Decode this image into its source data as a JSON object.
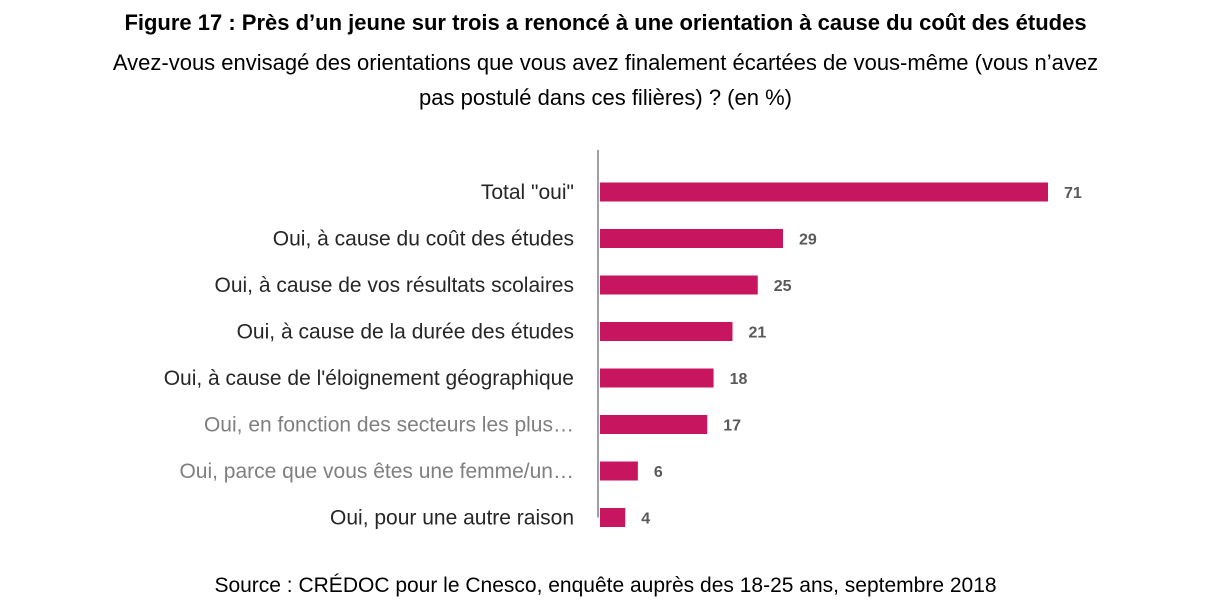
{
  "figure": {
    "title": "Figure 17 : Près d’un jeune sur trois a renoncé à une orientation à cause du coût des études",
    "subtitle_line1": "Avez-vous envisagé des orientations que vous avez finalement écartées de vous-même (vous n’avez",
    "subtitle_line2": "pas postulé dans ces filières) ? (en %)",
    "source": "Source : CRÉDOC pour le Cnesco, enquête auprès des 18-25 ans, septembre 2018"
  },
  "chart_data": {
    "type": "bar",
    "orientation": "horizontal",
    "categories": [
      "Total \"oui\"",
      "Oui, à cause du coût des études",
      "Oui, à cause de vos résultats scolaires",
      "Oui, à cause de la durée des études",
      "Oui, à cause de l'éloignement géographique",
      "Oui, en fonction des secteurs les plus…",
      "Oui, parce que vous êtes une femme/un…",
      "Oui, pour une autre raison"
    ],
    "label_colors": [
      "#262626",
      "#262626",
      "#262626",
      "#262626",
      "#262626",
      "#7f7f7f",
      "#7f7f7f",
      "#262626"
    ],
    "values": [
      71,
      29,
      25,
      21,
      18,
      17,
      6,
      4
    ],
    "data_labels": [
      "71",
      "29",
      "25",
      "21",
      "18",
      "17",
      "6",
      "4"
    ],
    "xlim": [
      0,
      71
    ],
    "bar_color": "#c8155f",
    "axis_color": "#808080",
    "grid": false,
    "legend": "none"
  }
}
